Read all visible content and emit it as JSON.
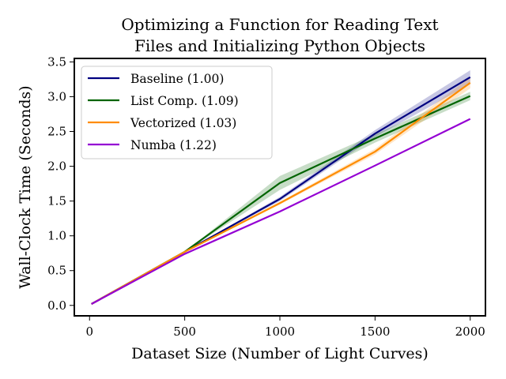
{
  "chart_data": {
    "type": "line",
    "title_lines": [
      "Optimizing a Function for Reading Text",
      "Files and Initializing Python Objects"
    ],
    "xlabel": "Dataset Size (Number of Light Curves)",
    "ylabel": "Wall-Clock Time (Seconds)",
    "xlim": [
      -80,
      2080
    ],
    "ylim": [
      -0.15,
      3.55
    ],
    "xticks": [
      0,
      500,
      1000,
      1500,
      2000
    ],
    "xtick_labels": [
      "0",
      "500",
      "1000",
      "1500",
      "2000"
    ],
    "yticks": [
      0.0,
      0.5,
      1.0,
      1.5,
      2.0,
      2.5,
      3.0,
      3.5
    ],
    "ytick_labels": [
      "0.0",
      "0.5",
      "1.0",
      "1.5",
      "2.0",
      "2.5",
      "3.0",
      "3.5"
    ],
    "grid": false,
    "legend_position": "top-left",
    "x": [
      10,
      500,
      1000,
      1500,
      2000
    ],
    "series": [
      {
        "name": "Baseline (1.00)",
        "color": "#000080",
        "values": [
          0.02,
          0.77,
          1.53,
          2.47,
          3.28
        ],
        "band": [
          0.0,
          0.0,
          0.03,
          0.05,
          0.1
        ]
      },
      {
        "name": "List Comp. (1.09)",
        "color": "#006400",
        "values": [
          0.02,
          0.77,
          1.76,
          2.4,
          3.01
        ],
        "band": [
          0.0,
          0.0,
          0.1,
          0.06,
          0.06
        ]
      },
      {
        "name": "Vectorized (1.03)",
        "color": "#ff8c00",
        "values": [
          0.02,
          0.77,
          1.47,
          2.21,
          3.2
        ],
        "band": [
          0.0,
          0.0,
          0.02,
          0.04,
          0.08
        ]
      },
      {
        "name": "Numba (1.22)",
        "color": "#9400d3",
        "values": [
          0.02,
          0.74,
          1.35,
          2.01,
          2.68
        ],
        "band": [
          0.0,
          0.0,
          0.01,
          0.01,
          0.01
        ]
      }
    ]
  }
}
